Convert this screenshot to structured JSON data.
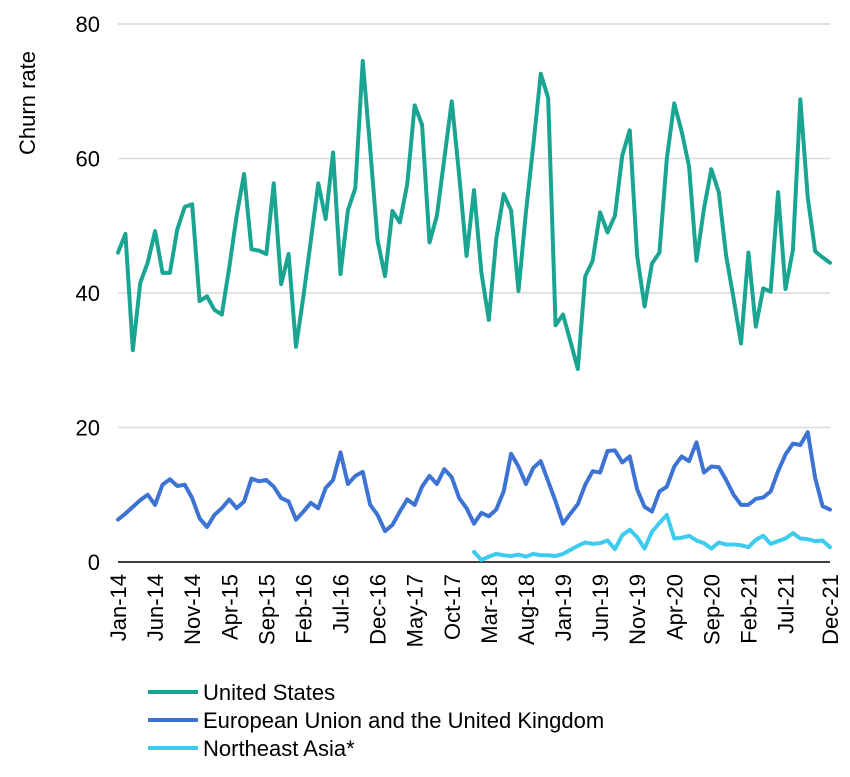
{
  "chart_data": {
    "type": "line",
    "title": "",
    "xlabel": "",
    "ylabel": "Churn rate",
    "ylim": [
      0,
      80
    ],
    "yticks": [
      0,
      20,
      40,
      60,
      80
    ],
    "grid": "horizontal",
    "legend_position": "bottom-left",
    "x_start": "Jan-14",
    "x_end": "Dec-21",
    "xtick_labels": [
      "Jan-14",
      "Jun-14",
      "Nov-14",
      "Apr-15",
      "Sep-15",
      "Feb-16",
      "Jul-16",
      "Dec-16",
      "May-17",
      "Oct-17",
      "Mar-18",
      "Aug-18",
      "Jan-19",
      "Jun-19",
      "Nov-19",
      "Apr-20",
      "Sep-20",
      "Feb-21",
      "Jul-21",
      "Dec-21"
    ],
    "series": [
      {
        "name": "United States",
        "color": "#1aa592",
        "values": [
          46,
          48.8,
          31.5,
          41.5,
          44.5,
          49.2,
          43,
          43,
          49.5,
          52.8,
          53.2,
          38.8,
          39.5,
          37.5,
          36.8,
          43.8,
          51.5,
          57.7,
          46.5,
          46.3,
          45.8,
          56.3,
          41.3,
          45.8,
          32,
          39.5,
          47.8,
          56.3,
          51,
          60.9,
          42.8,
          52.3,
          55.6,
          74.5,
          61.5,
          47.8,
          42.5,
          52.2,
          50.5,
          56.2,
          67.9,
          65,
          47.5,
          51.5,
          60,
          68.5,
          57.5,
          45.5,
          55.3,
          43,
          36,
          48,
          54.7,
          52.3,
          40.3,
          52,
          62,
          72.6,
          69,
          35.2,
          36.8,
          32.8,
          28.7,
          42.5,
          44.8,
          52,
          49,
          51.5,
          60.5,
          64.2,
          45.5,
          38,
          44.4,
          46,
          60,
          68.2,
          64,
          58.8,
          44.8,
          52.5,
          58.4,
          55,
          45.5,
          39.2,
          32.5,
          46,
          35,
          40.7,
          40.2,
          55,
          40.6,
          46.4,
          68.8,
          54.2,
          46.2,
          45.3,
          44.5
        ]
      },
      {
        "name": "European Union and the United Kingdom",
        "color": "#3d73d2",
        "values": [
          6.3,
          7.2,
          8.2,
          9.2,
          10,
          8.5,
          11.5,
          12.3,
          11.3,
          11.5,
          9.5,
          6.5,
          5.2,
          7,
          8,
          9.3,
          8,
          9,
          12.4,
          12,
          12.2,
          11.2,
          9.5,
          9,
          6.3,
          7.5,
          8.8,
          8,
          11,
          12.2,
          16.3,
          11.6,
          12.8,
          13.4,
          8.5,
          7,
          4.6,
          5.5,
          7.5,
          9.3,
          8.5,
          11.2,
          12.8,
          11.6,
          13.8,
          12.6,
          9.5,
          8,
          5.7,
          7.3,
          6.8,
          7.8,
          10.5,
          16.1,
          14.2,
          11.6,
          14,
          15,
          12,
          9,
          5.7,
          7.2,
          8.6,
          11.5,
          13.5,
          13.3,
          16.5,
          16.6,
          14.8,
          15.7,
          10.8,
          8.2,
          7.5,
          10.5,
          11.2,
          14.2,
          15.7,
          15,
          17.8,
          13.3,
          14.2,
          14.1,
          12.2,
          10,
          8.5,
          8.5,
          9.4,
          9.6,
          10.5,
          13.5,
          16,
          17.6,
          17.4,
          19.3,
          12.5,
          8.3,
          7.8
        ]
      },
      {
        "name": "Northeast Asia*",
        "color": "#3ecbf0",
        "values": [
          null,
          null,
          null,
          null,
          null,
          null,
          null,
          null,
          null,
          null,
          null,
          null,
          null,
          null,
          null,
          null,
          null,
          null,
          null,
          null,
          null,
          null,
          null,
          null,
          null,
          null,
          null,
          null,
          null,
          null,
          null,
          null,
          null,
          null,
          null,
          null,
          null,
          null,
          null,
          null,
          null,
          null,
          null,
          null,
          null,
          null,
          null,
          null,
          1.5,
          0.3,
          0.8,
          1.2,
          1,
          0.9,
          1.1,
          0.8,
          1.2,
          1,
          1,
          0.9,
          1.2,
          1.8,
          2.4,
          2.9,
          2.7,
          2.8,
          3.2,
          1.9,
          4,
          4.8,
          3.7,
          2,
          4.5,
          5.8,
          7,
          3.5,
          3.6,
          3.9,
          3.2,
          2.8,
          2,
          2.9,
          2.6,
          2.6,
          2.5,
          2.2,
          3.3,
          3.9,
          2.7,
          3.1,
          3.5,
          4.3,
          3.5,
          3.4,
          3.1,
          3.2,
          2.2
        ]
      }
    ]
  }
}
